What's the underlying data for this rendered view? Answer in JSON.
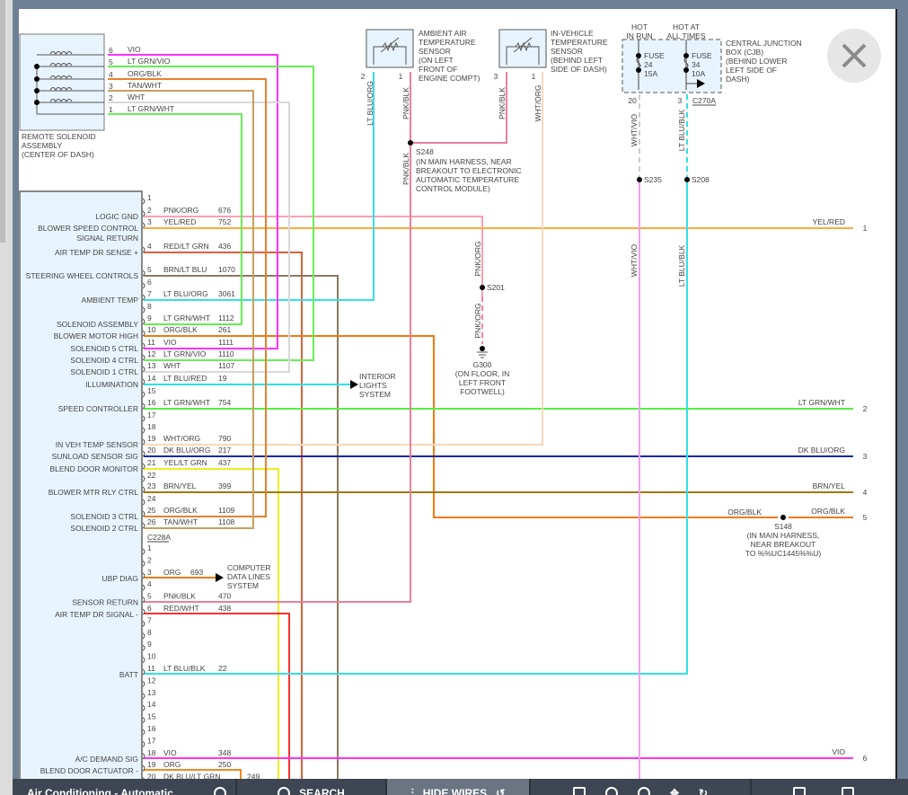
{
  "remote_solenoid": {
    "label": [
      "REMOTE SOLENOID",
      "ASSEMBLY",
      "(CENTER OF DASH)"
    ],
    "pins": [
      {
        "num": "6",
        "color_name": "VIO",
        "color": "#ff30ff"
      },
      {
        "num": "5",
        "color_name": "LT GRN/VIO",
        "color": "#66ee55"
      },
      {
        "num": "4",
        "color_name": "ORG/BLK",
        "color": "#e8802a"
      },
      {
        "num": "3",
        "color_name": "TAN/WHT",
        "color": "#c4a060"
      },
      {
        "num": "2",
        "color_name": "WHT",
        "color": "#d8d8d8"
      },
      {
        "num": "1",
        "color_name": "LT GRN/WHT",
        "color": "#66ee55"
      }
    ]
  },
  "module": {
    "connector1": {
      "name": "C228A",
      "pins": [
        {
          "num": "1",
          "func": "",
          "wire": "",
          "circuit": ""
        },
        {
          "num": "2",
          "func": "LOGIC GND",
          "wire": "PNK/ORG",
          "circuit": "676",
          "color": "#ff9fb0"
        },
        {
          "num": "3",
          "func": "BLOWER SPEED CONTROL",
          "func2": "SIGNAL RETURN",
          "wire": "YEL/RED",
          "circuit": "752",
          "color": "#ffaa40"
        },
        {
          "num": "4",
          "func": "AIR TEMP DR SENSE +",
          "wire": "RED/LT GRN",
          "circuit": "436",
          "color": "#d96040"
        },
        {
          "num": "5",
          "func": "STEERING WHEEL CONTROLS",
          "wire": "BRN/LT BLU",
          "circuit": "1070",
          "color": "#8a7a60"
        },
        {
          "num": "6",
          "func": "",
          "wire": "",
          "circuit": ""
        },
        {
          "num": "7",
          "func": "AMBIENT TEMP",
          "wire": "LT BLU/ORG",
          "circuit": "3061",
          "color": "#33e0e8"
        },
        {
          "num": "8",
          "func": "",
          "wire": "",
          "circuit": ""
        },
        {
          "num": "9",
          "func": "SOLENOID ASSEMBLY",
          "wire": "LT GRN/WHT",
          "circuit": "1112",
          "color": "#66ee55"
        },
        {
          "num": "10",
          "func": "BLOWER MOTOR HIGH",
          "wire": "ORG/BLK",
          "circuit": "261",
          "color": "#f07a10"
        },
        {
          "num": "11",
          "func": "SOLENOID 5 CTRL",
          "wire": "VIO",
          "circuit": "1111",
          "color": "#ff30ff"
        },
        {
          "num": "12",
          "func": "SOLENOID 4 CTRL",
          "wire": "LT GRN/VIO",
          "circuit": "1110",
          "color": "#66ee55"
        },
        {
          "num": "13",
          "func": "SOLENOID 1 CTRL",
          "wire": "WHT",
          "circuit": "1107",
          "color": "#d8d8d8"
        },
        {
          "num": "14",
          "func": "ILLUMINATION",
          "wire": "LT BLU/RED",
          "circuit": "19",
          "color": "#33e0e8"
        },
        {
          "num": "15",
          "func": "",
          "wire": "",
          "circuit": ""
        },
        {
          "num": "16",
          "func": "SPEED CONTROLLER",
          "wire": "LT GRN/WHT",
          "circuit": "754",
          "color": "#55ee44"
        },
        {
          "num": "17",
          "func": "",
          "wire": "",
          "circuit": ""
        },
        {
          "num": "18",
          "func": "",
          "wire": "",
          "circuit": ""
        },
        {
          "num": "19",
          "func": "IN VEH TEMP SENSOR",
          "wire": "WHT/ORG",
          "circuit": "790",
          "color": "#f8d8b8"
        },
        {
          "num": "20",
          "func": "SUNLOAD SENSOR SIG",
          "wire": "DK BLU/ORG",
          "circuit": "217",
          "color": "#1a2a9a"
        },
        {
          "num": "21",
          "func": "BLEND DOOR MONITOR",
          "wire": "YEL/LT GRN",
          "circuit": "437",
          "color": "#e8f020"
        },
        {
          "num": "22",
          "func": "",
          "wire": "",
          "circuit": ""
        },
        {
          "num": "23",
          "func": "BLOWER MTR RLY CTRL",
          "wire": "BRN/YEL",
          "circuit": "399",
          "color": "#9a7a10"
        },
        {
          "num": "24",
          "func": "",
          "wire": "",
          "circuit": ""
        },
        {
          "num": "25",
          "func": "SOLENOID 3 CTRL",
          "wire": "ORG/BLK",
          "circuit": "1109",
          "color": "#e8802a"
        },
        {
          "num": "26",
          "func": "SOLENOID 2 CTRL",
          "wire": "TAN/WHT",
          "circuit": "1108",
          "color": "#c4a060"
        }
      ]
    },
    "connector2": {
      "pins": [
        {
          "num": "1",
          "func": "",
          "wire": "",
          "circuit": ""
        },
        {
          "num": "2",
          "func": "",
          "wire": "",
          "circuit": ""
        },
        {
          "num": "3",
          "func": "UBP DIAG",
          "wire": "ORG",
          "circuit": "693",
          "color": "#f07a10"
        },
        {
          "num": "4",
          "func": "",
          "wire": "",
          "circuit": ""
        },
        {
          "num": "5",
          "func": "SENSOR RETURN",
          "wire": "PNK/BLK",
          "circuit": "470",
          "color": "#e8809a"
        },
        {
          "num": "6",
          "func": "AIR TEMP DR SIGNAL -",
          "wire": "RED/WHT",
          "circuit": "438",
          "color": "#ff3030"
        },
        {
          "num": "7",
          "func": "",
          "wire": "",
          "circuit": ""
        },
        {
          "num": "8",
          "func": "",
          "wire": "",
          "circuit": ""
        },
        {
          "num": "9",
          "func": "",
          "wire": "",
          "circuit": ""
        },
        {
          "num": "10",
          "func": "",
          "wire": "",
          "circuit": ""
        },
        {
          "num": "11",
          "func": "BATT",
          "wire": "LT BLU/BLK",
          "circuit": "22",
          "color": "#33e0e8"
        },
        {
          "num": "12",
          "func": "",
          "wire": "",
          "circuit": ""
        },
        {
          "num": "13",
          "func": "",
          "wire": "",
          "circuit": ""
        },
        {
          "num": "14",
          "func": "",
          "wire": "",
          "circuit": ""
        },
        {
          "num": "15",
          "func": "",
          "wire": "",
          "circuit": ""
        },
        {
          "num": "16",
          "func": "",
          "wire": "",
          "circuit": ""
        },
        {
          "num": "17",
          "func": "",
          "wire": "",
          "circuit": ""
        },
        {
          "num": "18",
          "func": "A/C DEMAND SIG",
          "wire": "VIO",
          "circuit": "348",
          "color": "#ff30ff"
        },
        {
          "num": "19",
          "func": "BLEND DOOR ACTUATOR -",
          "wire": "ORG",
          "circuit": "250",
          "color": "#f08a20"
        },
        {
          "num": "20",
          "func": "",
          "wire": "DK BLU/LT GRN",
          "circuit": "249",
          "color": "#f08a20"
        }
      ]
    }
  },
  "ambient_sensor": {
    "label": [
      "AMBIENT AIR",
      "TEMPERATURE",
      "SENSOR",
      "(ON LEFT",
      "FRONT OF",
      "ENGINE COMPT)"
    ],
    "pin_left": "2",
    "pin_right": "1",
    "wire_left": "LT BLU/ORG",
    "wire_right": "PNK/BLK"
  },
  "in_vehicle_sensor": {
    "label": [
      "IN-VEHICLE",
      "TEMPERATURE",
      "SENSOR",
      "(BEHIND LEFT",
      "SIDE OF DASH)"
    ],
    "pin_left": "3",
    "pin_right": "1",
    "wire_left": "PNK/BLK",
    "wire_right": "WHT/ORG"
  },
  "cjb": {
    "label": [
      "CENTRAL JUNCTION",
      "BOX (CJB)",
      "(BEHIND LOWER",
      "LEFT SIDE OF",
      "DASH)"
    ],
    "hot_in_run": [
      "HOT",
      "IN RUN"
    ],
    "hot_at_all_times": [
      "HOT AT",
      "ALL TIMES"
    ],
    "fuse1": [
      "FUSE",
      "24",
      "15A"
    ],
    "fuse2": [
      "FUSE",
      "34",
      "10A"
    ],
    "pin_left": "20",
    "pin_right": "3",
    "connector": "C270A",
    "wire_left": "WHT/VIO",
    "wire_right": "LT BLU/BLK"
  },
  "splices": {
    "s248": {
      "name": "S248",
      "desc": [
        "(IN MAIN HARNESS, NEAR",
        "BREAKOUT TO ELECTRONIC",
        "AUTOMATIC TEMPERATURE",
        "CONTROL MODULE)"
      ],
      "wire": "PNK/BLK"
    },
    "s201": {
      "name": "S201",
      "wire_above": "PNK/ORG",
      "wire_below": "PNK/ORG"
    },
    "s235": {
      "name": "S235",
      "wire": "WHT/VIO"
    },
    "s208": {
      "name": "S208",
      "wire": "LT BLU/BLK"
    },
    "s148": {
      "name": "S148",
      "desc": [
        "(IN MAIN HARNESS,",
        "NEAR BREAKOUT",
        "TO %%UC1445%%U)"
      ],
      "wire_left": "ORG/BLK",
      "wire_right": "ORG/BLK"
    }
  },
  "ground": {
    "name": "G300",
    "desc": [
      "(ON FLOOR, IN",
      "LEFT FRONT",
      "FOOTWELL)"
    ]
  },
  "interior_lights": [
    "INTERIOR",
    "LIGHTS",
    "SYSTEM"
  ],
  "computer_data": [
    "COMPUTER",
    "DATA LINES",
    "SYSTEM"
  ],
  "right_pins": [
    {
      "num": "1",
      "wire": "YEL/RED"
    },
    {
      "num": "2",
      "wire": "LT GRN/WHT"
    },
    {
      "num": "3",
      "wire": "DK BLU/ORG"
    },
    {
      "num": "4",
      "wire": "BRN/YEL"
    },
    {
      "num": "5",
      "wire": "ORG/BLK"
    },
    {
      "num": "6",
      "wire": "VIO"
    }
  ],
  "toolbar": {
    "title": "Air Conditioning - Automatic",
    "search": "SEARCH",
    "hide_wires": "HIDE WIRES"
  }
}
